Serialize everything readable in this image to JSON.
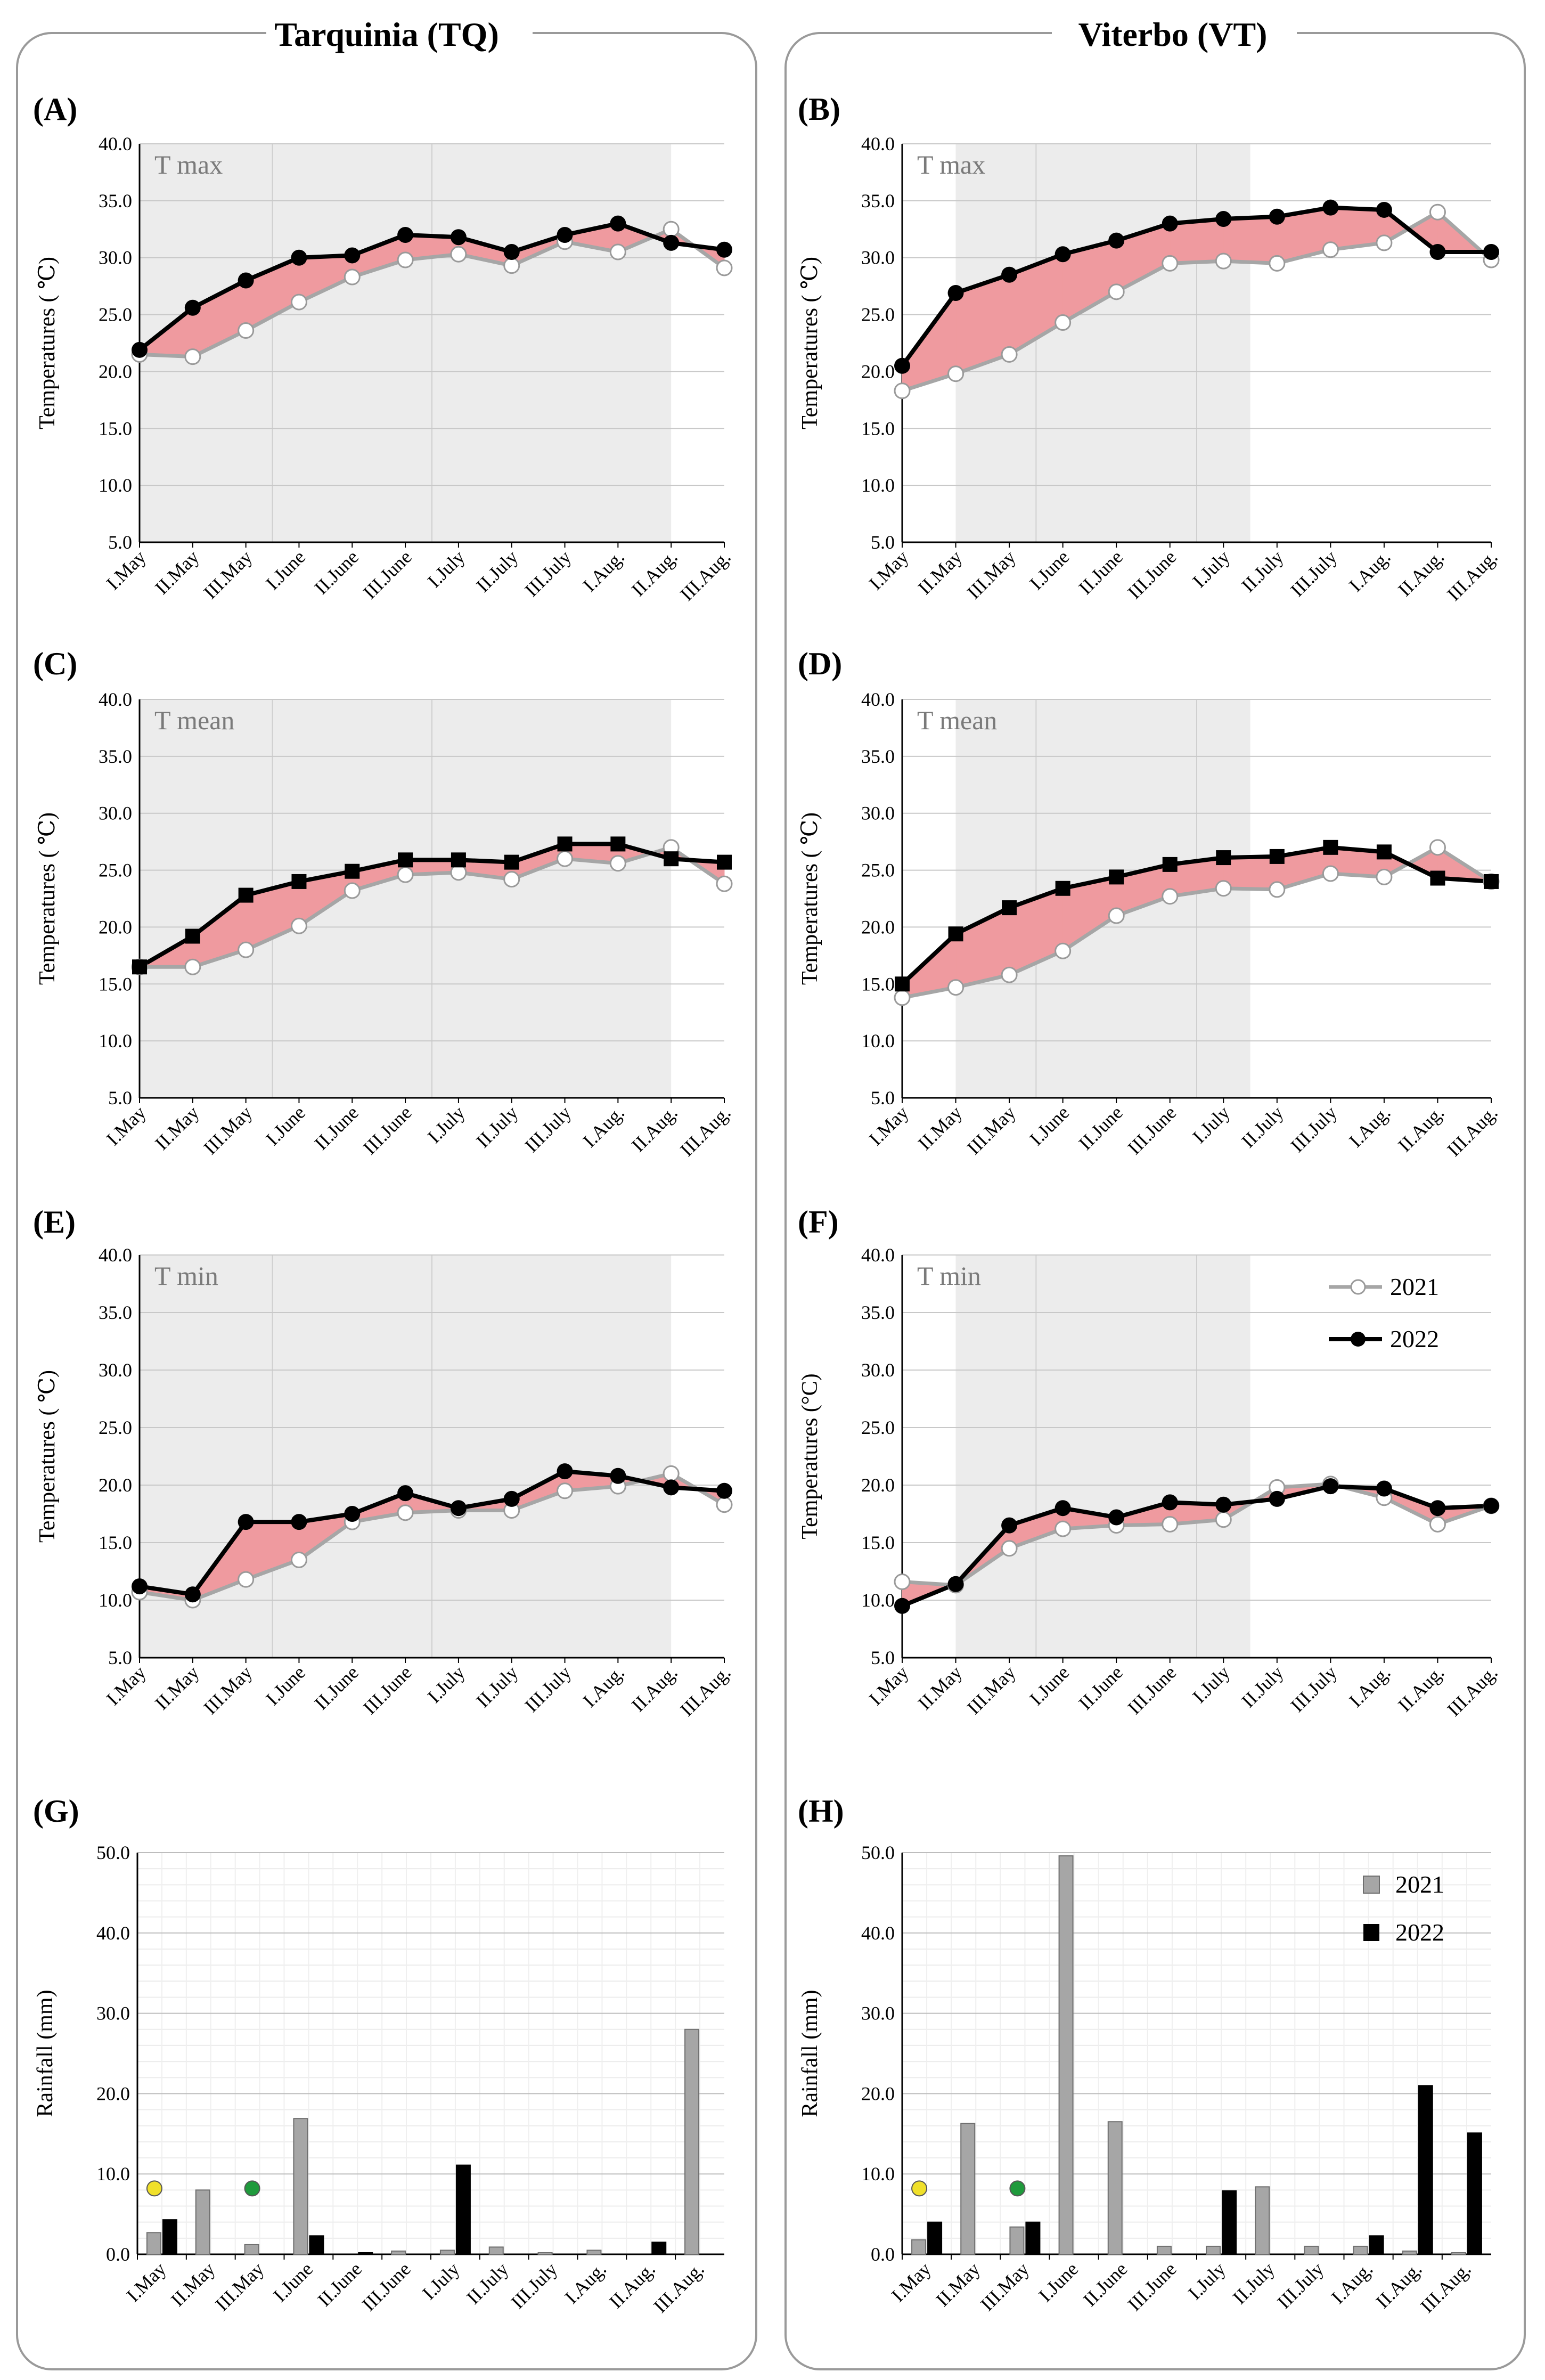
{
  "columns": [
    {
      "title": "Tarquinia (TQ)"
    },
    {
      "title": "Viterbo (VT)"
    }
  ],
  "chart_data": [
    {
      "id": "A",
      "type": "line",
      "panel_label": "(A)",
      "inner_label": "T max",
      "ylabel": "Temperatures ( ℃)",
      "ylim": [
        5,
        40
      ],
      "yticks": [
        "5.0",
        "10.0",
        "15.0",
        "20.0",
        "25.0",
        "30.0",
        "35.0",
        "40.0"
      ],
      "categories": [
        "I.May",
        "II.May",
        "III.May",
        "I.June",
        "II.June",
        "III.June",
        "I.July",
        "II.July",
        "III.July",
        "I.Aug.",
        "II.Aug.",
        "III.Aug."
      ],
      "shaded_range": [
        0,
        10
      ],
      "shaded_lines": [
        2.5,
        5.5
      ],
      "marker_2022": "circle",
      "series": [
        {
          "name": "2021",
          "values": [
            21.5,
            21.3,
            23.6,
            26.1,
            28.3,
            29.8,
            30.3,
            29.3,
            31.4,
            30.5,
            32.5,
            29.1
          ]
        },
        {
          "name": "2022",
          "values": [
            21.9,
            25.6,
            28.0,
            30.0,
            30.2,
            32.0,
            31.8,
            30.5,
            32.0,
            33.0,
            31.3,
            30.7
          ]
        }
      ]
    },
    {
      "id": "B",
      "type": "line",
      "panel_label": "(B)",
      "inner_label": "T max",
      "ylabel": "Temperatures ( ℃)",
      "ylim": [
        5,
        40
      ],
      "yticks": [
        "5.0",
        "10.0",
        "15.0",
        "20.0",
        "25.0",
        "30.0",
        "35.0",
        "40.0"
      ],
      "categories": [
        "I.May",
        "II.May",
        "III.May",
        "I.June",
        "II.June",
        "III.June",
        "I.July",
        "II.July",
        "III.July",
        "I.Aug.",
        "II.Aug.",
        "III.Aug."
      ],
      "shaded_range": [
        1,
        6.5
      ],
      "shaded_lines": [
        2.5,
        5.5
      ],
      "marker_2022": "circle",
      "series": [
        {
          "name": "2021",
          "values": [
            18.3,
            19.8,
            21.5,
            24.3,
            27.0,
            29.5,
            29.7,
            29.5,
            30.7,
            31.3,
            34.0,
            29.8
          ]
        },
        {
          "name": "2022",
          "values": [
            20.5,
            26.9,
            28.5,
            30.3,
            31.5,
            33.0,
            33.4,
            33.6,
            34.4,
            34.2,
            30.5,
            30.5
          ]
        }
      ]
    },
    {
      "id": "C",
      "type": "line",
      "panel_label": "(C)",
      "inner_label": "T mean",
      "ylabel": "Temperatures ( ℃)",
      "ylim": [
        5,
        40
      ],
      "yticks": [
        "5.0",
        "10.0",
        "15.0",
        "20.0",
        "25.0",
        "30.0",
        "35.0",
        "40.0"
      ],
      "categories": [
        "I.May",
        "II.May",
        "III.May",
        "I.June",
        "II.June",
        "III.June",
        "I.July",
        "II.July",
        "III.July",
        "I.Aug.",
        "II.Aug.",
        "III.Aug."
      ],
      "shaded_range": [
        0,
        10
      ],
      "shaded_lines": [
        2.5,
        5.5
      ],
      "marker_2022": "square",
      "series": [
        {
          "name": "2021",
          "values": [
            16.5,
            16.5,
            18.0,
            20.1,
            23.2,
            24.6,
            24.8,
            24.2,
            26.0,
            25.6,
            27.0,
            23.8
          ]
        },
        {
          "name": "2022",
          "values": [
            16.5,
            19.2,
            22.8,
            24.0,
            24.9,
            25.9,
            25.9,
            25.7,
            27.3,
            27.3,
            26.0,
            25.7
          ]
        }
      ]
    },
    {
      "id": "D",
      "type": "line",
      "panel_label": "(D)",
      "inner_label": "T mean",
      "ylabel": "Temperatures ( ℃)",
      "ylim": [
        5,
        40
      ],
      "yticks": [
        "5.0",
        "10.0",
        "15.0",
        "20.0",
        "25.0",
        "30.0",
        "35.0",
        "40.0"
      ],
      "categories": [
        "I.May",
        "II.May",
        "III.May",
        "I.June",
        "II.June",
        "III.June",
        "I.July",
        "II.July",
        "III.July",
        "I.Aug.",
        "II.Aug.",
        "III.Aug."
      ],
      "shaded_range": [
        1,
        6.5
      ],
      "shaded_lines": [
        2.5,
        5.5
      ],
      "marker_2022": "square",
      "series": [
        {
          "name": "2021",
          "values": [
            13.8,
            14.7,
            15.8,
            17.9,
            21.0,
            22.7,
            23.4,
            23.3,
            24.7,
            24.4,
            27.0,
            24.0
          ]
        },
        {
          "name": "2022",
          "values": [
            15.0,
            19.4,
            21.7,
            23.4,
            24.4,
            25.5,
            26.1,
            26.2,
            27.0,
            26.6,
            24.3,
            24.0
          ]
        }
      ]
    },
    {
      "id": "E",
      "type": "line",
      "panel_label": "(E)",
      "inner_label": "T min",
      "ylabel": "Temperatures ( ℃)",
      "ylim": [
        5,
        40
      ],
      "yticks": [
        "5.0",
        "10.0",
        "15.0",
        "20.0",
        "25.0",
        "30.0",
        "35.0",
        "40.0"
      ],
      "categories": [
        "I.May",
        "II.May",
        "III.May",
        "I.June",
        "II.June",
        "III.June",
        "I.July",
        "II.July",
        "III.July",
        "I.Aug.",
        "II.Aug.",
        "III.Aug."
      ],
      "shaded_range": [
        0,
        10
      ],
      "shaded_lines": [
        2.5,
        5.5
      ],
      "marker_2022": "circle",
      "series": [
        {
          "name": "2021",
          "values": [
            10.7,
            10.0,
            11.8,
            13.5,
            16.8,
            17.6,
            17.8,
            17.8,
            19.5,
            19.9,
            21.0,
            18.3
          ]
        },
        {
          "name": "2022",
          "values": [
            11.2,
            10.5,
            16.8,
            16.8,
            17.5,
            19.3,
            18.0,
            18.8,
            21.2,
            20.8,
            19.8,
            19.5
          ]
        }
      ]
    },
    {
      "id": "F",
      "type": "line",
      "panel_label": "(F)",
      "inner_label": "T min",
      "ylabel": "Temperatures (°C)",
      "ylim": [
        5,
        40
      ],
      "yticks": [
        "5.0",
        "10.0",
        "15.0",
        "20.0",
        "25.0",
        "30.0",
        "35.0",
        "40.0"
      ],
      "categories": [
        "I.May",
        "II.May",
        "III.May",
        "I.June",
        "II.June",
        "III.June",
        "I.July",
        "II.July",
        "III.July",
        "I.Aug.",
        "II.Aug.",
        "III.Aug."
      ],
      "shaded_range": [
        1,
        6.5
      ],
      "shaded_lines": [
        2.5,
        5.5
      ],
      "marker_2022": "circle",
      "legend": [
        "2021",
        "2022"
      ],
      "series": [
        {
          "name": "2021",
          "values": [
            11.6,
            11.3,
            14.5,
            16.2,
            16.5,
            16.6,
            17.0,
            19.8,
            20.1,
            18.9,
            16.6,
            18.2
          ]
        },
        {
          "name": "2022",
          "values": [
            9.5,
            11.4,
            16.5,
            18.0,
            17.2,
            18.5,
            18.3,
            18.8,
            19.9,
            19.7,
            18.0,
            18.2
          ]
        }
      ]
    },
    {
      "id": "G",
      "type": "bar",
      "panel_label": "(G)",
      "ylabel": "Rainfall (mm)",
      "ylim": [
        0,
        50
      ],
      "yticks": [
        "0.0",
        "10.0",
        "20.0",
        "30.0",
        "40.0",
        "50.0"
      ],
      "categories": [
        "I.May",
        "II.May",
        "III.May",
        "I.June",
        "II.June",
        "III.June",
        "I.July",
        "II.July",
        "III.July",
        "I.Aug.",
        "II.Aug.",
        "III.Aug."
      ],
      "markers": [
        {
          "index": 0,
          "value": 8.2,
          "color": "#f0e02a"
        },
        {
          "index": 2,
          "value": 8.2,
          "color": "#1f9a3c"
        }
      ],
      "series": [
        {
          "name": "2021",
          "values": [
            2.7,
            8.0,
            1.2,
            16.9,
            0,
            0.4,
            0.5,
            0.9,
            0.2,
            0.5,
            0,
            28.0
          ]
        },
        {
          "name": "2022",
          "values": [
            4.3,
            0,
            0,
            2.3,
            0.2,
            0,
            11.1,
            0,
            0,
            0,
            1.5,
            0
          ]
        }
      ]
    },
    {
      "id": "H",
      "type": "bar",
      "panel_label": "(H)",
      "ylabel": "Rainfall (mm)",
      "ylim": [
        0,
        50
      ],
      "yticks": [
        "0.0",
        "10.0",
        "20.0",
        "30.0",
        "40.0",
        "50.0"
      ],
      "categories": [
        "I.May",
        "II.May",
        "III.May",
        "I.June",
        "II.June",
        "III.June",
        "I.July",
        "II.July",
        "III.July",
        "I.Aug.",
        "II.Aug.",
        "III.Aug."
      ],
      "markers": [
        {
          "index": 0,
          "value": 8.2,
          "color": "#f0e02a"
        },
        {
          "index": 2,
          "value": 8.2,
          "color": "#1f9a3c"
        }
      ],
      "legend": [
        "2021",
        "2022"
      ],
      "series": [
        {
          "name": "2021",
          "values": [
            1.8,
            16.3,
            3.4,
            49.6,
            16.5,
            1.0,
            1.0,
            8.4,
            1.0,
            1.0,
            0.4,
            0.2
          ]
        },
        {
          "name": "2022",
          "values": [
            4.0,
            0,
            4.0,
            0,
            0,
            0,
            7.9,
            0,
            0,
            2.3,
            21.0,
            15.1
          ]
        }
      ]
    }
  ]
}
